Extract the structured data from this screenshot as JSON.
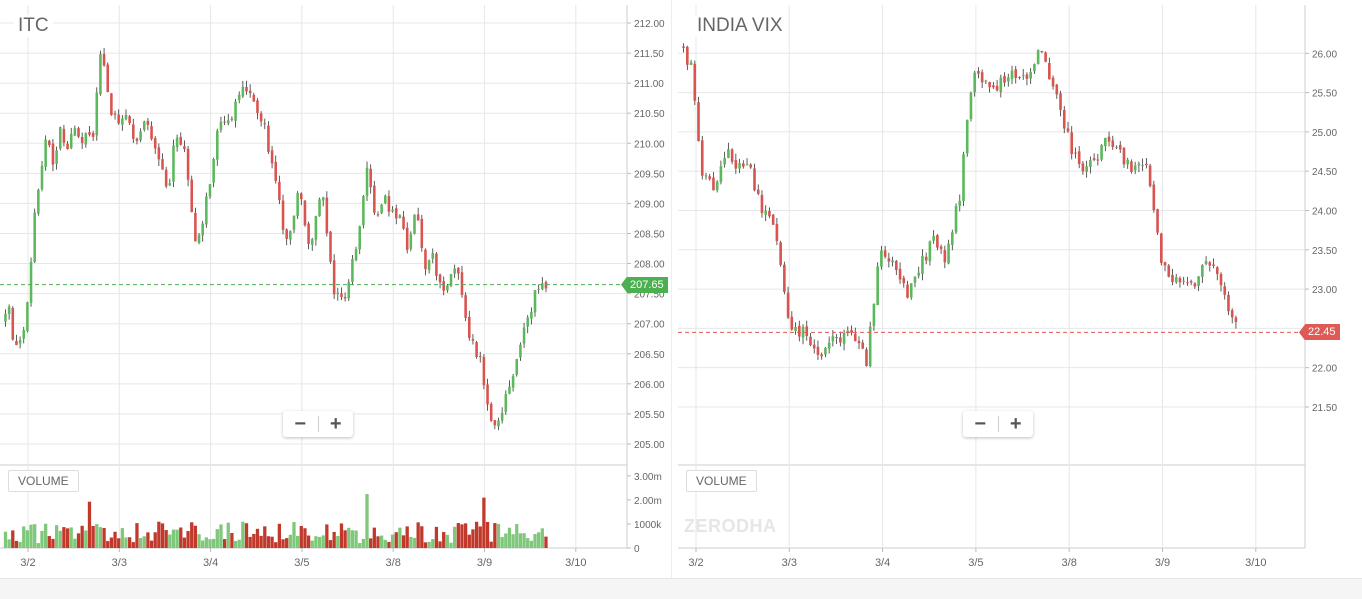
{
  "watermark": "ZERODHA",
  "colors": {
    "up": "#5cb85c",
    "down": "#d9534f",
    "vol_up": "#7fc77a",
    "vol_down": "#c0392b",
    "grid": "#e7e7e7",
    "axis_text": "#666666",
    "last_up": "#4caf50",
    "last_down": "#e05a55"
  },
  "controls": {
    "zoom_out": "−",
    "zoom_in": "+",
    "volume_label": "VOLUME"
  },
  "chart_data": [
    {
      "type": "candlestick",
      "title": "ITC",
      "last_price": "207.65",
      "last_value": 207.65,
      "last_color": "green",
      "ylim": [
        204.7,
        212.15
      ],
      "yticks": [
        "212.00",
        "211.50",
        "211.00",
        "210.50",
        "210.00",
        "209.50",
        "209.00",
        "208.50",
        "208.00",
        "207.50",
        "207.00",
        "206.50",
        "206.00",
        "205.50",
        "205.00"
      ],
      "xticks": [
        "3/2",
        "3/3",
        "3/4",
        "3/5",
        "3/8",
        "3/9",
        "3/10"
      ],
      "volume_label": "VOLUME",
      "volume_yticks": [
        "3.00m",
        "2.00m",
        "1000k",
        "0"
      ],
      "volume_ylim": [
        0,
        3.2
      ],
      "days": [
        {
          "label": "3/2",
          "candles": 95,
          "path": [
            207.0,
            207.4,
            206.5,
            206.7,
            207.4,
            208.9,
            209.6,
            210.1,
            209.6,
            210.2,
            209.9,
            210.4,
            209.9,
            210.3,
            210.0
          ]
        },
        {
          "label": "3/3",
          "candles": 90,
          "path": [
            210.1,
            211.6,
            210.6,
            210.4,
            210.5,
            210.0,
            210.4,
            210.1,
            209.7,
            209.2,
            210.2,
            209.8
          ]
        },
        {
          "label": "3/4",
          "candles": 90,
          "path": [
            209.8,
            208.2,
            209.1,
            210.3,
            210.4,
            211.0,
            210.7,
            210.3,
            209.3
          ]
        },
        {
          "label": "3/5",
          "candles": 90,
          "path": [
            209.3,
            208.3,
            209.2,
            208.2,
            209.3,
            207.6,
            207.4,
            208.2,
            209.6
          ]
        },
        {
          "label": "3/8",
          "candles": 90,
          "path": [
            209.6,
            208.7,
            209.1,
            208.8,
            208.9,
            208.2,
            209.0,
            207.8,
            208.1,
            207.5,
            207.8,
            207.9
          ]
        },
        {
          "label": "3/9",
          "candles": 90,
          "path": [
            207.9,
            206.8,
            206.3,
            205.2,
            205.6,
            206.4,
            207.1,
            207.6,
            207.65
          ]
        }
      ]
    },
    {
      "type": "candlestick",
      "title": "INDIA VIX",
      "last_price": "22.45",
      "last_value": 22.45,
      "last_color": "red",
      "ylim": [
        20.8,
        26.5
      ],
      "yticks": [
        "26.00",
        "25.50",
        "25.00",
        "24.50",
        "24.00",
        "23.50",
        "23.00",
        "22.50",
        "22.00",
        "21.50"
      ],
      "xticks": [
        "3/2",
        "3/3",
        "3/4",
        "3/5",
        "3/8",
        "3/9",
        "3/10"
      ],
      "volume_label": "VOLUME",
      "days": [
        {
          "label": "3/2",
          "candles": 95,
          "path": [
            26.1,
            25.8,
            24.4,
            24.3,
            24.8,
            24.55,
            24.5,
            24.05,
            23.9
          ]
        },
        {
          "label": "3/3",
          "candles": 90,
          "path": [
            23.9,
            22.5,
            22.45,
            22.2,
            22.35,
            22.45,
            22.1
          ]
        },
        {
          "label": "3/4",
          "candles": 90,
          "path": [
            22.1,
            23.5,
            23.4,
            22.9,
            23.3,
            23.6,
            23.4,
            24.2
          ]
        },
        {
          "label": "3/5",
          "candles": 90,
          "path": [
            24.2,
            25.8,
            25.6,
            25.6,
            25.8,
            25.6,
            26.1,
            25.6
          ]
        },
        {
          "label": "3/8",
          "candles": 90,
          "path": [
            25.6,
            25.0,
            24.5,
            24.6,
            24.9,
            24.7,
            24.5,
            24.6
          ]
        },
        {
          "label": "3/9",
          "candles": 90,
          "path": [
            24.6,
            23.3,
            23.1,
            23.05,
            23.4,
            22.9,
            22.45
          ]
        }
      ]
    }
  ]
}
